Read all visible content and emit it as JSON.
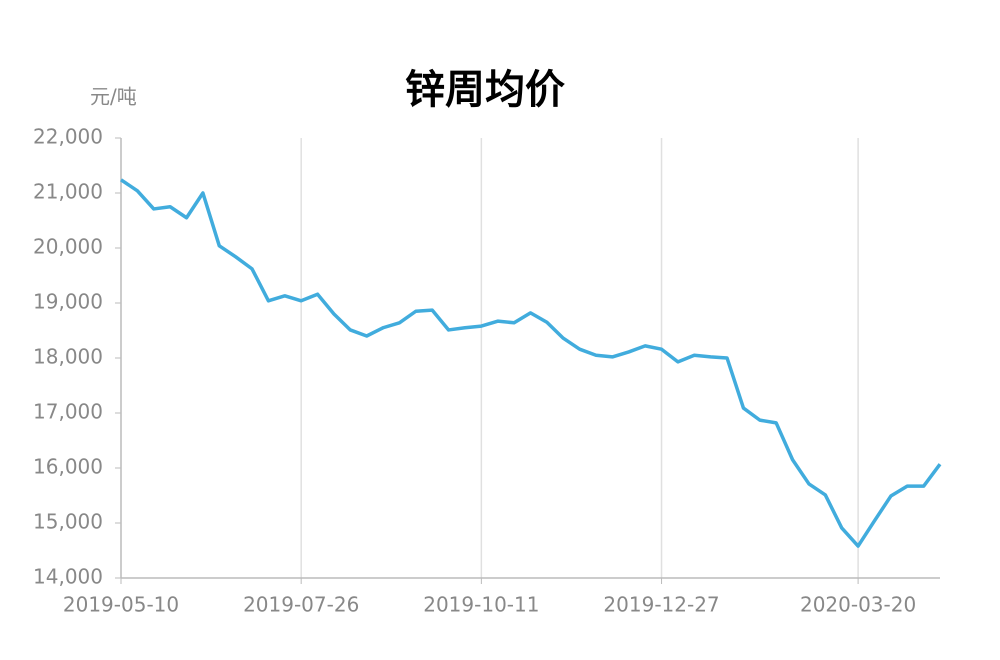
{
  "chart_data": {
    "type": "line",
    "title": "锌周均价",
    "y_unit": "元/吨",
    "x": [
      "2019-05-10",
      "2019-05-17",
      "2019-05-24",
      "2019-05-31",
      "2019-06-07",
      "2019-06-14",
      "2019-06-21",
      "2019-06-28",
      "2019-07-05",
      "2019-07-12",
      "2019-07-19",
      "2019-07-26",
      "2019-08-02",
      "2019-08-09",
      "2019-08-16",
      "2019-08-23",
      "2019-08-30",
      "2019-09-06",
      "2019-09-13",
      "2019-09-20",
      "2019-09-27",
      "2019-10-04",
      "2019-10-11",
      "2019-10-18",
      "2019-10-25",
      "2019-11-01",
      "2019-11-08",
      "2019-11-15",
      "2019-11-22",
      "2019-11-29",
      "2019-12-06",
      "2019-12-13",
      "2019-12-20",
      "2019-12-27",
      "2020-01-03",
      "2020-01-10",
      "2020-01-17",
      "2020-01-24",
      "2020-01-31",
      "2020-02-07",
      "2020-02-14",
      "2020-02-21",
      "2020-02-28",
      "2020-03-06",
      "2020-03-13",
      "2020-03-20",
      "2020-03-27",
      "2020-04-03",
      "2020-04-10",
      "2020-04-17",
      "2020-04-24"
    ],
    "series": [
      {
        "name": "锌",
        "color": "#41acdd",
        "values": [
          21240,
          21040,
          20710,
          20750,
          20550,
          21000,
          20040,
          19840,
          19620,
          19040,
          19130,
          19040,
          19160,
          18800,
          18510,
          18400,
          18550,
          18640,
          18850,
          18870,
          18510,
          18550,
          18580,
          18670,
          18640,
          18820,
          18650,
          18360,
          18160,
          18050,
          18020,
          18110,
          18220,
          18160,
          17930,
          18050,
          18020,
          18000,
          17090,
          16870,
          16820,
          16150,
          15710,
          15510,
          14910,
          14580,
          15040,
          15490,
          15670,
          15670,
          16070
        ]
      }
    ],
    "xlim": [
      "2019-05-10",
      "2020-04-24"
    ],
    "xticks": [
      "2019-05-10",
      "2019-07-26",
      "2019-10-11",
      "2019-12-27",
      "2020-03-20"
    ],
    "ylim": [
      14000,
      22000
    ],
    "yticks": [
      {
        "value": 14000,
        "label": "14,000"
      },
      {
        "value": 15000,
        "label": "15,000"
      },
      {
        "value": 16000,
        "label": "16,000"
      },
      {
        "value": 17000,
        "label": "17,000"
      },
      {
        "value": 18000,
        "label": "18,000"
      },
      {
        "value": 19000,
        "label": "19,000"
      },
      {
        "value": 20000,
        "label": "20,000"
      },
      {
        "value": 21000,
        "label": "21,000"
      },
      {
        "value": 22000,
        "label": "22,000"
      }
    ],
    "grid": "x"
  }
}
